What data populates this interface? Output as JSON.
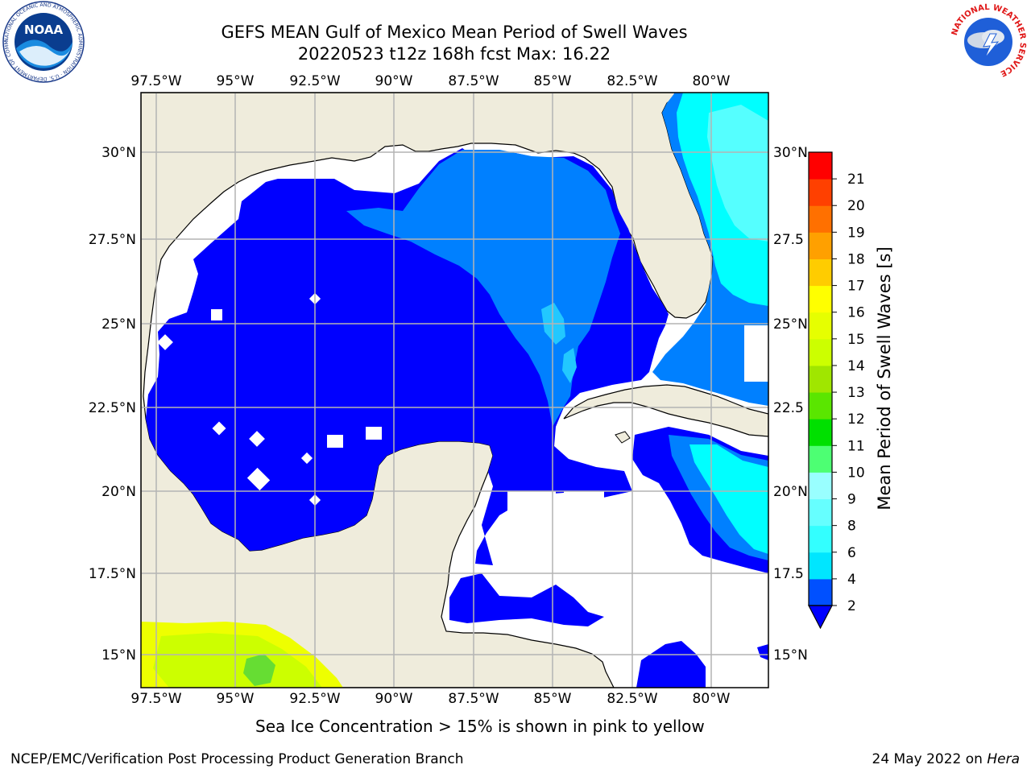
{
  "header": {
    "title_line1": "GEFS MEAN Gulf of Mexico Mean Period of Swell Waves",
    "title_line2": "20220523 t12z 168h fcst   Max: 16.22"
  },
  "axes": {
    "lon_labels": [
      "97.5°W",
      "95°W",
      "92.5°W",
      "90°W",
      "87.5°W",
      "85°W",
      "82.5°W",
      "80°W"
    ],
    "lat_labels_left": [
      "30°N",
      "27.5°N",
      "25°N",
      "22.5°N",
      "20°N",
      "17.5°N",
      "15°N"
    ],
    "lat_labels_right": [
      "30°N",
      "27.5",
      "25°N",
      "22.5",
      "20°N",
      "17.5",
      "15°N"
    ]
  },
  "colorbar": {
    "label": "Mean Period of Swell Waves [s]",
    "ticks": [
      "2",
      "4",
      "6",
      "8",
      "9",
      "10",
      "11",
      "12",
      "13",
      "14",
      "15",
      "16",
      "17",
      "18",
      "19",
      "20",
      "21"
    ],
    "colors": [
      "#0050ff",
      "#00e6ff",
      "#33ffff",
      "#66ffff",
      "#99ffff",
      "#4dff73",
      "#00e000",
      "#5ae600",
      "#a0e600",
      "#ccff00",
      "#e6ff00",
      "#ffff00",
      "#ffcc00",
      "#ffa000",
      "#ff7000",
      "#ff4000",
      "#ff0000"
    ],
    "under_color": "#0000ff"
  },
  "colors": {
    "land": "#efecdc",
    "ocean_no_data": "#ffffff",
    "swell_low": "#0000ff",
    "swell_mid": "#0080ff",
    "swell_cyan": "#00ffff",
    "swell_light": "#55ffff",
    "ice_yellow": "#eeff00",
    "ice_lime": "#ccff00",
    "ice_green": "#66dd33",
    "grid": "#b4b4b4"
  },
  "footer": {
    "ice_note": "Sea Ice Concentration > 15% is shown in pink to yellow",
    "left": "NCEP/EMC/Verification Post Processing Product Generation Branch",
    "date": "24 May 2022 on ",
    "host": "Hera"
  },
  "logos": {
    "noaa": {
      "text": "NOAA",
      "ring_text": "NATIONAL OCEANIC AND ATMOSPHERIC ADMINISTRATION · U.S. DEPARTMENT OF COMMERCE"
    },
    "nws": {
      "ring_text": "NATIONAL WEATHER SERVICE"
    }
  }
}
